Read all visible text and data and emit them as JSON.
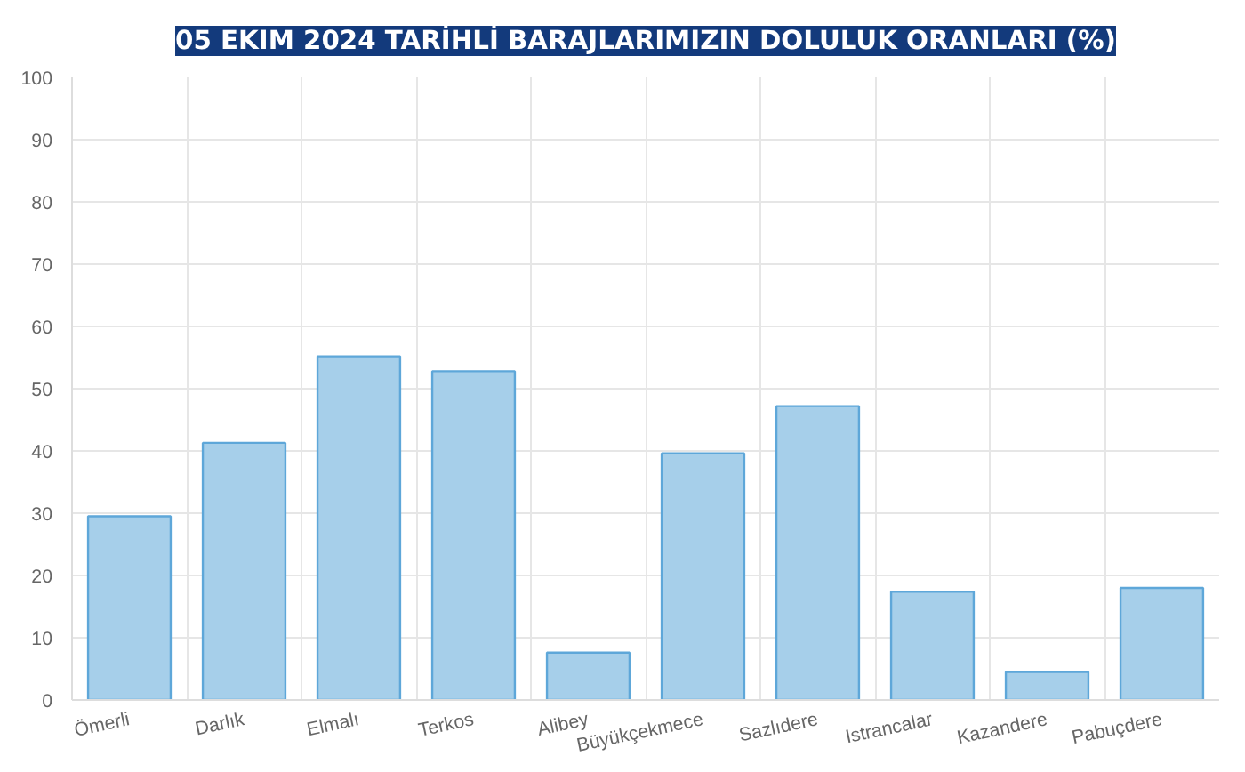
{
  "chart_data": {
    "type": "bar",
    "title": "05 EKIM 2024 TARİHLİ BARAJLARIMIZIN DOLULUK ORANLARI (%)",
    "categories": [
      "Ömerli",
      "Darlık",
      "Elmalı",
      "Terkos",
      "Alibey",
      "Büyükçekmece",
      "Sazlıdere",
      "Istrancalar",
      "Kazandere",
      "Pabuçdere"
    ],
    "values": [
      29.5,
      41.3,
      55.2,
      52.8,
      7.6,
      39.6,
      47.2,
      17.4,
      4.5,
      18.0
    ],
    "color": "#a6cfea",
    "ylim": [
      0,
      100
    ],
    "yticks": [
      0,
      10,
      20,
      30,
      40,
      50,
      60,
      70,
      80,
      90,
      100
    ],
    "grid": true
  }
}
